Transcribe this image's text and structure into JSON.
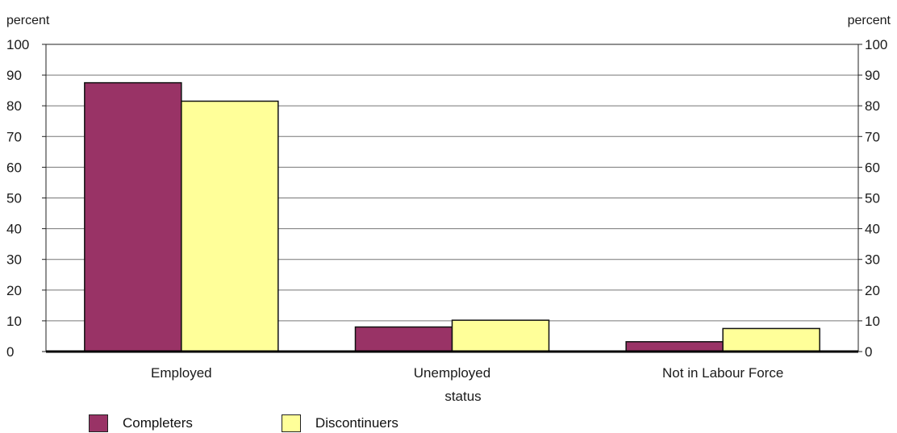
{
  "chart_data": {
    "type": "bar",
    "categories": [
      "Employed",
      "Unemployed",
      "Not in Labour Force"
    ],
    "series": [
      {
        "name": "Completers",
        "values": [
          87.5,
          8,
          3.2
        ],
        "color": "#993366"
      },
      {
        "name": "Discontinuers",
        "values": [
          81.5,
          10.2,
          7.5
        ],
        "color": "#FFFF99"
      }
    ],
    "xlabel": "status",
    "ylabel_left": "percent",
    "ylabel_right": "percent",
    "ylim": [
      0,
      100
    ],
    "yticks": [
      0,
      10,
      20,
      30,
      40,
      50,
      60,
      70,
      80,
      90,
      100
    ],
    "grid": true,
    "legend_position": "bottom-left"
  }
}
